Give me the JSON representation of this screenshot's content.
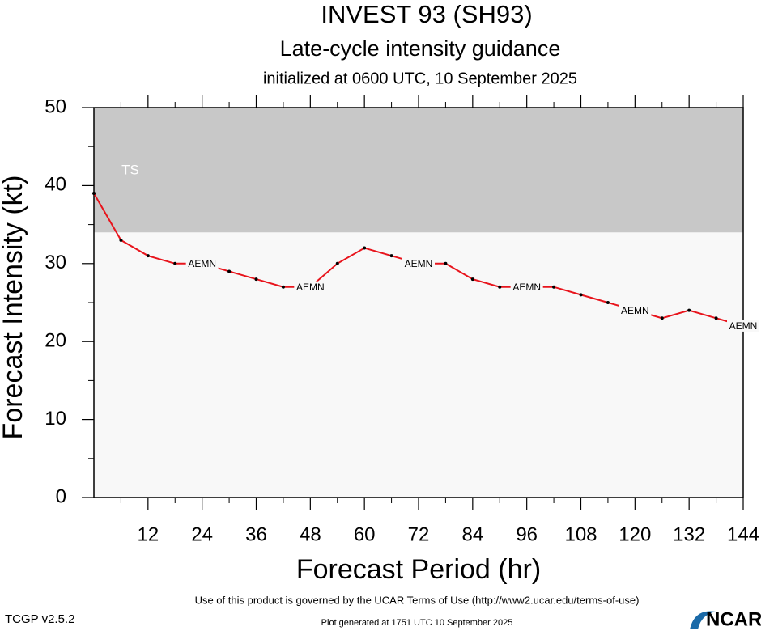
{
  "chart_data": {
    "type": "line",
    "title": "INVEST 93 (SH93)",
    "subtitle": "Late-cycle intensity guidance",
    "init_text": "initialized at 0600 UTC, 10 September 2025",
    "xlabel": "Forecast Period (hr)",
    "ylabel": "Forecast Intensity (kt)",
    "x": [
      0,
      6,
      12,
      18,
      24,
      30,
      36,
      42,
      48,
      54,
      60,
      66,
      72,
      78,
      84,
      90,
      96,
      102,
      108,
      114,
      120,
      126,
      132,
      138,
      144
    ],
    "series": [
      {
        "name": "AEMN",
        "color": "#e8141c",
        "values": [
          39,
          33,
          31,
          30,
          30,
          29,
          28,
          27,
          27,
          30,
          32,
          31,
          30,
          30,
          28,
          27,
          27,
          27,
          26,
          25,
          24,
          23,
          24,
          23,
          22
        ]
      }
    ],
    "bands": [
      {
        "label": "TS",
        "from": 34,
        "to": 50,
        "color": "#c8c8c8"
      }
    ],
    "plot_background": "#f8f8f8",
    "xlim": [
      0,
      144
    ],
    "xticks": [
      12,
      24,
      36,
      48,
      60,
      72,
      84,
      96,
      108,
      120,
      132,
      144
    ],
    "ylim": [
      0,
      50
    ],
    "yticks": [
      0,
      10,
      20,
      30,
      40,
      50
    ],
    "footer": {
      "terms": "Use of this product is governed by the UCAR Terms of Use (http://www2.ucar.edu/terms-of-use)",
      "version": "TCGP v2.5.2",
      "generated": "Plot generated at 1751 UTC   10 September 2025",
      "logo": "NCAR"
    }
  }
}
